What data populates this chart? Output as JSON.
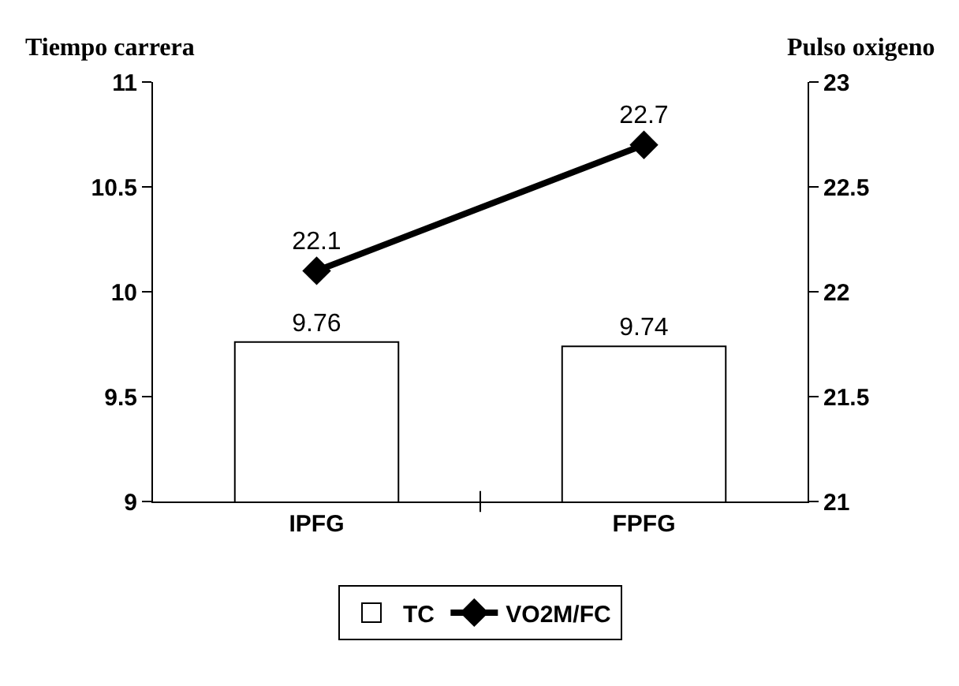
{
  "chart_data": {
    "type": "bar",
    "ylabel": "Tiempo carrera",
    "y2label": "Pulso oxigeno",
    "categories": [
      "IPFG",
      "FPFG"
    ],
    "series": [
      {
        "name": "TC",
        "color": "#ffffff",
        "values": [
          9.76,
          9.74
        ]
      },
      {
        "name": "VO2M/FC",
        "type": "line",
        "axis": "y2",
        "marker": "diamond",
        "color": "#000000",
        "values": [
          22.1,
          22.7
        ]
      }
    ],
    "ylim": [
      9,
      11
    ],
    "yticks": [
      9,
      9.5,
      10,
      10.5,
      11
    ],
    "y2lim": [
      21,
      23
    ],
    "y2ticks": [
      21,
      21.5,
      22,
      22.5,
      23
    ],
    "data_labels": true,
    "legend": "bottom"
  }
}
